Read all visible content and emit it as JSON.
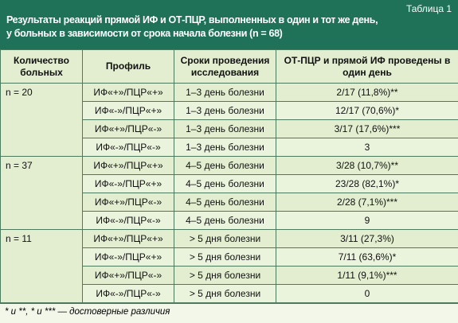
{
  "header": {
    "label": "Таблица 1",
    "title": [
      "Результаты реакций прямой ИФ и ОТ-ПЦР, выполненных в один и тот же день,",
      "у больных в зависимости от срока начала болезни (n = 68)"
    ]
  },
  "table": {
    "columns": [
      "Количество больных",
      "Профиль",
      "Сроки проведения исследования",
      "ОТ-ПЦР и прямой ИФ проведены в один день"
    ],
    "groups": [
      {
        "n": "n = 20",
        "rows": [
          [
            "ИФ«+»/ПЦР«+»",
            "1–3 день болезни",
            "2/17 (11,8%)**"
          ],
          [
            "ИФ«-»/ПЦР«+»",
            "1–3 день болезни",
            "12/17 (70,6%)*"
          ],
          [
            "ИФ«+»/ПЦР«-»",
            "1–3 день болезни",
            "3/17 (17,6%)***"
          ],
          [
            "ИФ«-»/ПЦР«-»",
            "1–3 день болезни",
            "3"
          ]
        ]
      },
      {
        "n": "n = 37",
        "rows": [
          [
            "ИФ«+»/ПЦР«+»",
            "4–5 день болезни",
            "3/28 (10,7%)**"
          ],
          [
            "ИФ«-»/ПЦР«+»",
            "4–5 день болезни",
            "23/28 (82,1%)*"
          ],
          [
            "ИФ«+»/ПЦР«-»",
            "4–5 день болезни",
            "2/28 (7,1%)***"
          ],
          [
            "ИФ«-»/ПЦР«-»",
            "4–5 день болезни",
            "9"
          ]
        ]
      },
      {
        "n": "n = 11",
        "rows": [
          [
            "ИФ«+»/ПЦР«+»",
            "> 5 дня болезни",
            "3/11 (27,3%)"
          ],
          [
            "ИФ«-»/ПЦР«+»",
            "> 5 дня болезни",
            "7/11 (63,6%)*"
          ],
          [
            "ИФ«+»/ПЦР«-»",
            "> 5 дня болезни",
            "1/11 (9,1%)***"
          ],
          [
            "ИФ«-»/ПЦР«-»",
            "> 5 дня болезни",
            "0"
          ]
        ]
      }
    ]
  },
  "footnote": "* и **, * и *** — достоверные различия"
}
